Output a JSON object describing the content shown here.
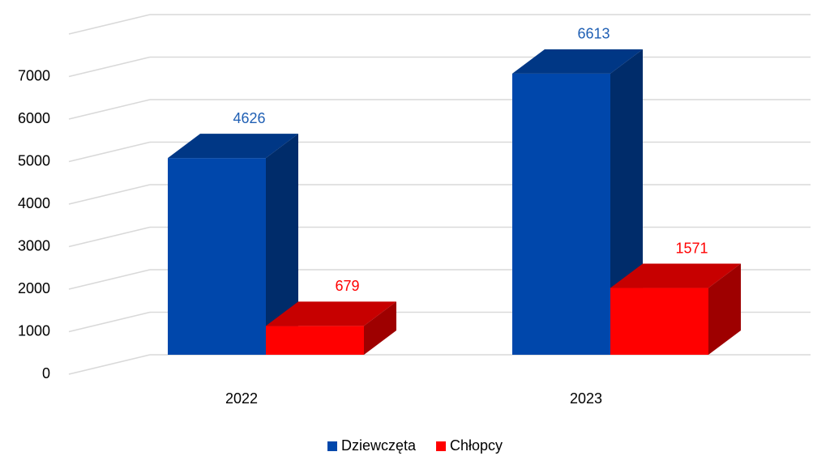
{
  "chart_data": {
    "type": "bar3d",
    "categories": [
      "2022",
      "2023"
    ],
    "series": [
      {
        "name": "Dziewczęta",
        "color": "#0047ab",
        "values": [
          4626,
          6613
        ]
      },
      {
        "name": "Chłopcy",
        "color": "#ff0000",
        "values": [
          679,
          1571
        ]
      }
    ],
    "ylim": [
      0,
      8000
    ],
    "yticks": [
      0,
      1000,
      2000,
      3000,
      4000,
      5000,
      6000,
      7000
    ],
    "grid": true,
    "legend": "bottom"
  }
}
